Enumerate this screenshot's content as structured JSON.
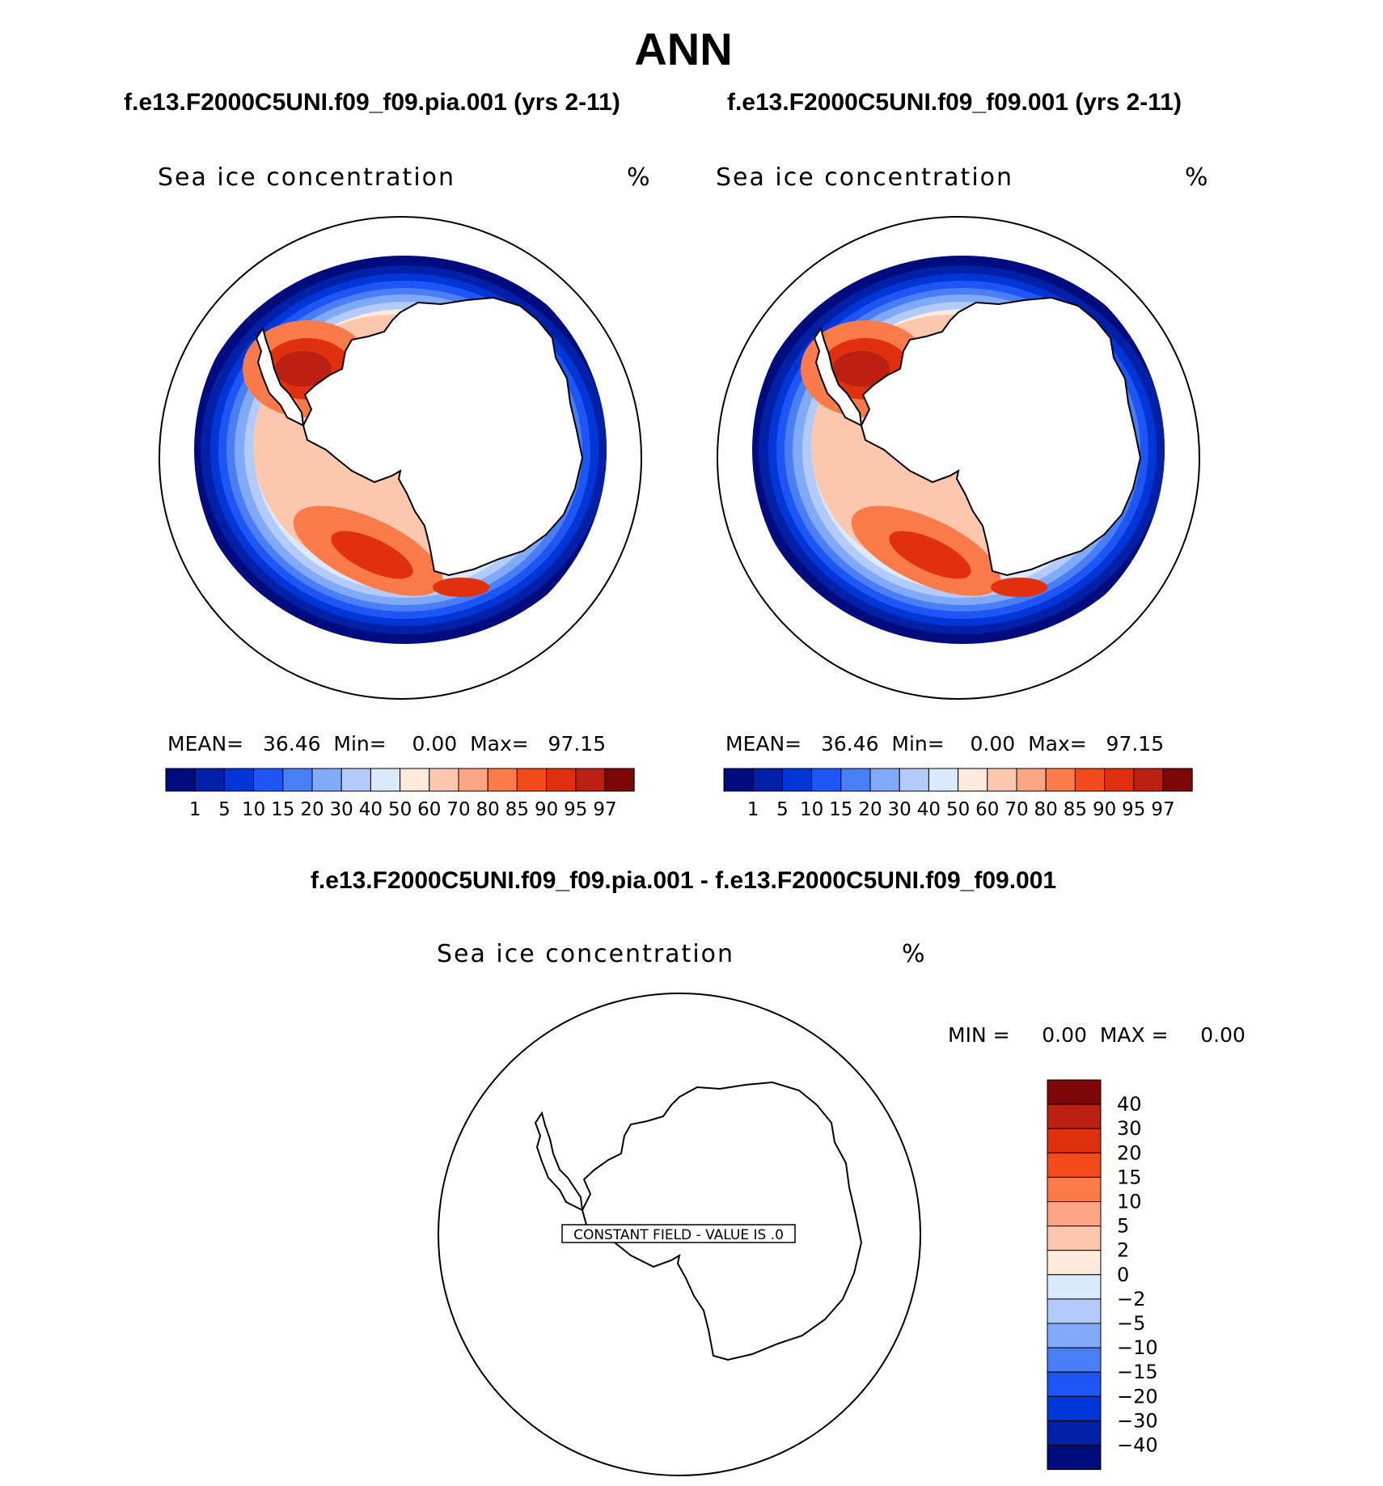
{
  "figure": {
    "title": "ANN",
    "diff_title": "f.e13.F2000C5UNI.f09_f09.pia.001 - f.e13.F2000C5UNI.f09_f09.001"
  },
  "panels": [
    {
      "case_title": "f.e13.F2000C5UNI.f09_f09.pia.001 (yrs 2-11)",
      "variable": "Sea ice concentration",
      "units": "%",
      "stats_text": "MEAN=   36.46  Min=    0.00  Max=   97.15"
    },
    {
      "case_title": "f.e13.F2000C5UNI.f09_f09.001 (yrs 2-11)",
      "variable": "Sea ice concentration",
      "units": "%",
      "stats_text": "MEAN=   36.46  Min=    0.00  Max=   97.15"
    },
    {
      "variable": "Sea ice concentration",
      "units": "%",
      "stats_text": "MIN =     0.00  MAX =     0.00",
      "constant_field_label": "CONSTANT FIELD - VALUE IS .0"
    }
  ],
  "colorbar_abs": {
    "colors": [
      "#000c7d",
      "#0020a8",
      "#0036d8",
      "#1e55f5",
      "#4a7ef7",
      "#80a9f8",
      "#b2cbfa",
      "#dbe9fc",
      "#feeadb",
      "#fdc7ae",
      "#fca583",
      "#fb7a4a",
      "#f44b1c",
      "#e0300d",
      "#bb2012",
      "#7d0707"
    ],
    "labels": [
      "1",
      "5",
      "10",
      "15",
      "20",
      "30",
      "40",
      "50",
      "60",
      "70",
      "80",
      "85",
      "90",
      "95",
      "97"
    ]
  },
  "colorbar_diff": {
    "colors_top_to_bottom": [
      "#7d0707",
      "#bb2012",
      "#e0300d",
      "#f44b1c",
      "#fb7a4a",
      "#fca583",
      "#fdc7ae",
      "#feeadb",
      "#dbe9fc",
      "#b2cbfa",
      "#80a9f8",
      "#4a7ef7",
      "#1e55f5",
      "#0036d8",
      "#0020a8",
      "#000c7d"
    ],
    "labels_top_to_bottom": [
      "40",
      "30",
      "20",
      "15",
      "10",
      "5",
      "2",
      "0",
      "−2",
      "−5",
      "−10",
      "−15",
      "−20",
      "−30",
      "−40"
    ]
  },
  "chart_data": {
    "type": "heatmap",
    "projection": "south polar stereographic",
    "field": "Sea ice concentration (%)",
    "panels": [
      {
        "case": "f.e13.F2000C5UNI.f09_f09.pia.001",
        "years": "2-11",
        "mean": 36.46,
        "min": 0.0,
        "max": 97.15
      },
      {
        "case": "f.e13.F2000C5UNI.f09_f09.001",
        "years": "2-11",
        "mean": 36.46,
        "min": 0.0,
        "max": 97.15
      },
      {
        "case": "difference",
        "min": 0.0,
        "max": 0.0,
        "constant_value": 0.0
      }
    ],
    "contour_levels_abs": [
      1,
      5,
      10,
      15,
      20,
      30,
      40,
      50,
      60,
      70,
      80,
      85,
      90,
      95,
      97
    ],
    "contour_levels_diff": [
      -40,
      -30,
      -20,
      -15,
      -10,
      -5,
      -2,
      0,
      2,
      5,
      10,
      15,
      20,
      30,
      40
    ]
  }
}
